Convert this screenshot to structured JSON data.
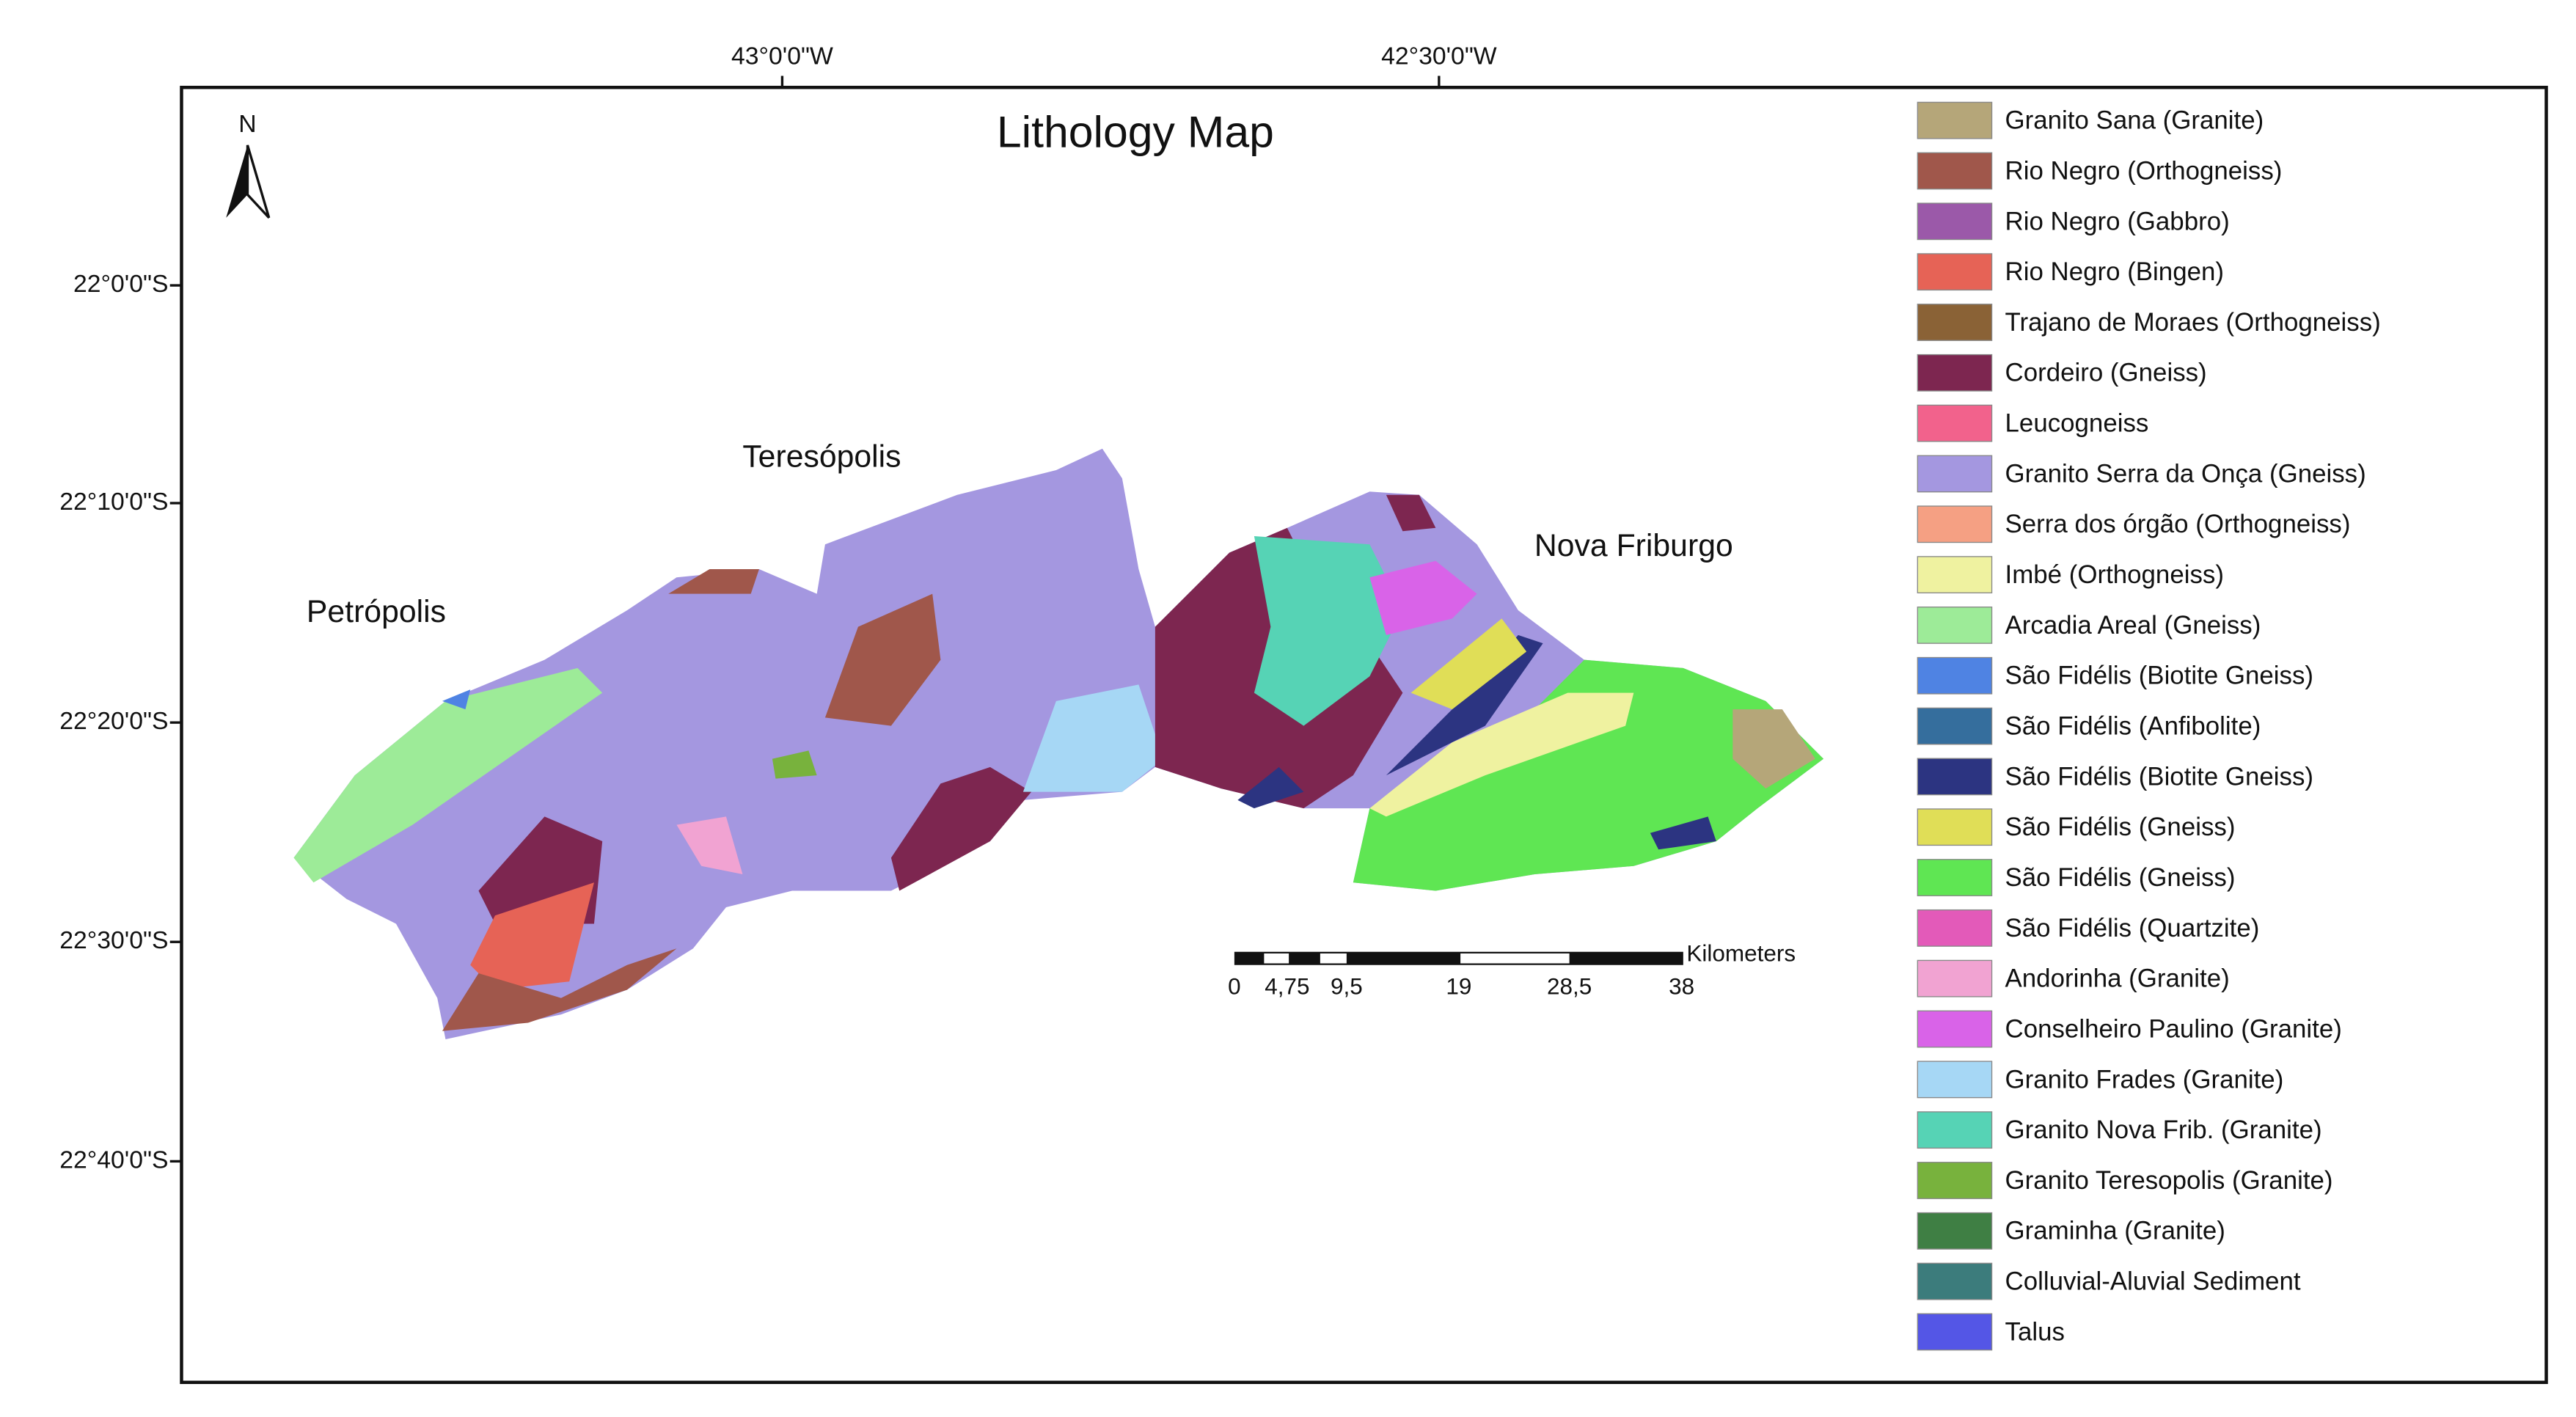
{
  "title": "Lithology Map",
  "north_label": "N",
  "longitude_labels": [
    "43°0'0\"W",
    "42°30'0\"W"
  ],
  "latitude_labels": [
    "22°0'0\"S",
    "22°10'0\"S",
    "22°20'0\"S",
    "22°30'0\"S",
    "22°40'0\"S"
  ],
  "cities": [
    "Teresópolis",
    "Petrópolis",
    "Nova Friburgo"
  ],
  "scale_bar": {
    "unit": "Kilometers",
    "labels": [
      "0",
      "4,75",
      "9,5",
      "19",
      "28,5",
      "38"
    ]
  },
  "legend": [
    {
      "label": "Granito Sana (Granite)",
      "color": "#b5a679"
    },
    {
      "label": "Rio Negro (Orthogneiss)",
      "color": "#a0574b"
    },
    {
      "label": "Rio Negro (Gabbro)",
      "color": "#9b59a9"
    },
    {
      "label": "Rio Negro (Bingen)",
      "color": "#e66356"
    },
    {
      "label": "Trajano de Moraes (Orthogneiss)",
      "color": "#8a6236"
    },
    {
      "label": "Cordeiro (Gneiss)",
      "color": "#7d2650"
    },
    {
      "label": "Leucogneiss",
      "color": "#f2628c"
    },
    {
      "label": "Granito Serra da Onça (Gneiss)",
      "color": "#a497e0"
    },
    {
      "label": "Serra dos órgão (Orthogneiss)",
      "color": "#f5a083"
    },
    {
      "label": "Imbé (Orthogneiss)",
      "color": "#eff2a0"
    },
    {
      "label": "Arcadia Areal (Gneiss)",
      "color": "#9deb98"
    },
    {
      "label": "São Fidélis (Biotite Gneiss)",
      "color": "#4f83e3"
    },
    {
      "label": "São Fidélis (Anfibolite)",
      "color": "#356e9d"
    },
    {
      "label": "São Fidélis (Biotite Gneiss)",
      "color": "#2c3481"
    },
    {
      "label": "São Fidélis (Gneiss)",
      "color": "#e0de57"
    },
    {
      "label": "São Fidélis (Gneiss)",
      "color": "#5fe653"
    },
    {
      "label": "São Fidélis (Quartzite)",
      "color": "#e35ab9"
    },
    {
      "label": "Andorinha (Granite)",
      "color": "#f1a3d2"
    },
    {
      "label": "Conselheiro Paulino (Granite)",
      "color": "#d963e8"
    },
    {
      "label": "Granito Frades (Granite)",
      "color": "#a6d7f5"
    },
    {
      "label": "Granito Nova Frib. (Granite)",
      "color": "#56d3b5"
    },
    {
      "label": "Granito Teresopolis (Granite)",
      "color": "#78b23d"
    },
    {
      "label": "Graminha (Granite)",
      "color": "#3f7f44"
    },
    {
      "label": "Colluvial-Aluvial Sediment",
      "color": "#3c7c7c"
    },
    {
      "label": "Talus",
      "color": "#5456e6"
    }
  ]
}
